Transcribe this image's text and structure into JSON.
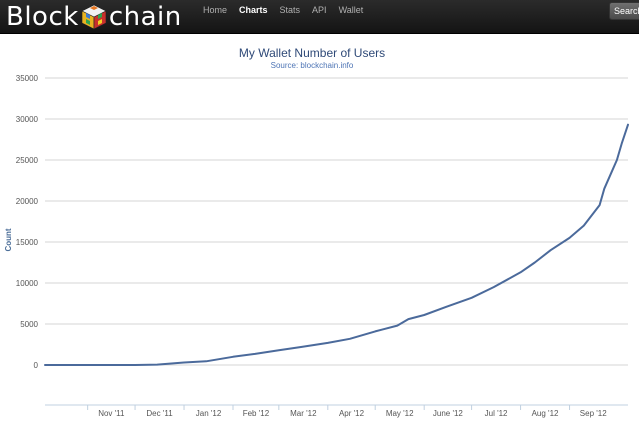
{
  "header": {
    "logo_left": "Block",
    "logo_right": "chain",
    "nav": [
      "Home",
      "Charts",
      "Stats",
      "API",
      "Wallet"
    ],
    "active_nav": "Charts",
    "search_label": "Search"
  },
  "chart_data": {
    "type": "line",
    "title": "My Wallet Number of Users",
    "subtitle": "Source: blockchain.info",
    "xlabel": "",
    "ylabel": "Count",
    "ylim": [
      0,
      35000
    ],
    "yticks": [
      0,
      5000,
      10000,
      15000,
      20000,
      25000,
      30000,
      35000
    ],
    "xticks": [
      "Nov '11",
      "Dec '11",
      "Jan '12",
      "Feb '12",
      "Mar '12",
      "Apr '12",
      "May '12",
      "June '12",
      "Jul '12",
      "Aug '12",
      "Sep '12"
    ],
    "xrange": [
      "2011-10-05",
      "2012-10-08"
    ],
    "grid": true,
    "color": "#4b6a9b",
    "series": [
      {
        "points": [
          [
            "2011-10-05",
            0
          ],
          [
            "2011-11-01",
            0
          ],
          [
            "2011-12-01",
            0
          ],
          [
            "2011-12-15",
            50
          ],
          [
            "2012-01-01",
            300
          ],
          [
            "2012-01-15",
            450
          ],
          [
            "2012-02-01",
            1000
          ],
          [
            "2012-02-15",
            1350
          ],
          [
            "2012-03-01",
            1800
          ],
          [
            "2012-03-15",
            2200
          ],
          [
            "2012-04-01",
            2700
          ],
          [
            "2012-04-15",
            3200
          ],
          [
            "2012-05-01",
            4100
          ],
          [
            "2012-05-15",
            4800
          ],
          [
            "2012-05-22",
            5600
          ],
          [
            "2012-06-01",
            6100
          ],
          [
            "2012-06-15",
            7100
          ],
          [
            "2012-07-01",
            8200
          ],
          [
            "2012-07-15",
            9500
          ],
          [
            "2012-08-01",
            11300
          ],
          [
            "2012-08-10",
            12500
          ],
          [
            "2012-08-20",
            14000
          ],
          [
            "2012-09-01",
            15500
          ],
          [
            "2012-09-10",
            17000
          ],
          [
            "2012-09-20",
            19500
          ],
          [
            "2012-09-23",
            21500
          ],
          [
            "2012-09-28",
            23700
          ],
          [
            "2012-10-01",
            25000
          ],
          [
            "2012-10-04",
            27000
          ],
          [
            "2012-10-08",
            29300
          ]
        ]
      }
    ]
  }
}
